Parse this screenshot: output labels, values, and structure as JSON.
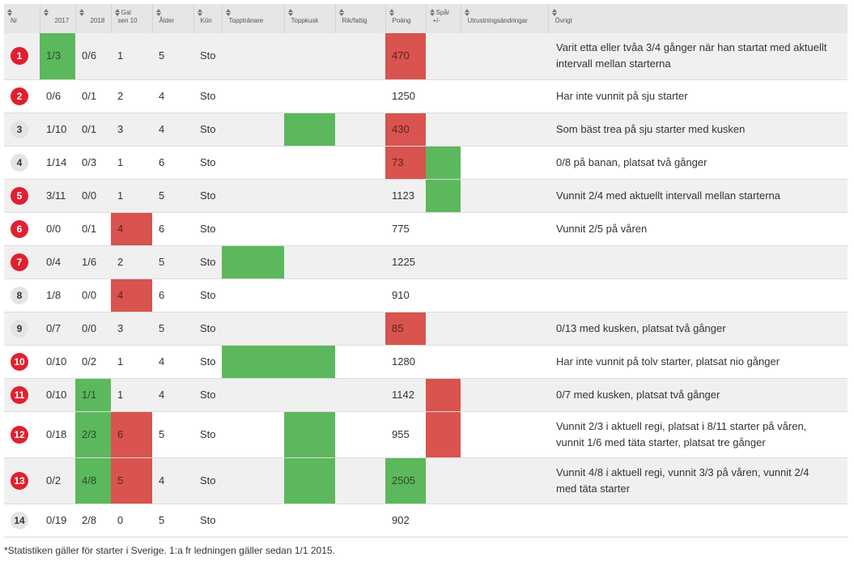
{
  "headers": {
    "nr": "Nr",
    "y2017": "2017",
    "y2018": "2018",
    "gal_line1": "Gal",
    "gal_line2": "sen 10",
    "alder": "Ålder",
    "kon": "Kön",
    "topptranare": "Topptränare",
    "toppkusk": "Toppkusk",
    "rikfattig": "Rik/fattig",
    "poang": "Poäng",
    "spar_line1": "Spår",
    "spar_line2": "+/-",
    "utrustning": "Utrustningsändringar",
    "ovrigt": "Övrigt"
  },
  "colors": {
    "green": "#5cb85c",
    "red": "#d9534f",
    "badge_red": "#e0202f",
    "badge_grey": "#e4e4e4",
    "header_bg": "#e6e6e6",
    "row_alt": "#f0f0f0"
  },
  "rows": [
    {
      "nr": "1",
      "badge": "red",
      "y2017": "1/3",
      "y2018": "0/6",
      "gal": "1",
      "alder": "5",
      "kon": "Sto",
      "poang": "470",
      "note": "Varit etta eller tvåa 3/4 gånger när han startat med aktuellt intervall mellan starterna",
      "hl": {
        "y2017": "green",
        "poang": "red"
      }
    },
    {
      "nr": "2",
      "badge": "red",
      "y2017": "0/6",
      "y2018": "0/1",
      "gal": "2",
      "alder": "4",
      "kon": "Sto",
      "poang": "1250",
      "note": "Har inte vunnit på sju starter",
      "hl": {}
    },
    {
      "nr": "3",
      "badge": "grey",
      "y2017": "1/10",
      "y2018": "0/1",
      "gal": "3",
      "alder": "4",
      "kon": "Sto",
      "poang": "430",
      "note": "Som bäst trea på sju starter med kusken",
      "hl": {
        "toppkusk": "green",
        "poang": "red"
      }
    },
    {
      "nr": "4",
      "badge": "grey",
      "y2017": "1/14",
      "y2018": "0/3",
      "gal": "1",
      "alder": "6",
      "kon": "Sto",
      "poang": "73",
      "note": "0/8 på banan, platsat två gånger",
      "hl": {
        "poang": "red",
        "spar": "green"
      }
    },
    {
      "nr": "5",
      "badge": "red",
      "y2017": "3/11",
      "y2018": "0/0",
      "gal": "1",
      "alder": "5",
      "kon": "Sto",
      "poang": "1123",
      "note": "Vunnit 2/4 med aktuellt intervall mellan starterna",
      "hl": {
        "spar": "green"
      }
    },
    {
      "nr": "6",
      "badge": "red",
      "y2017": "0/0",
      "y2018": "0/1",
      "gal": "4",
      "alder": "6",
      "kon": "Sto",
      "poang": "775",
      "note": "Vunnit 2/5 på våren",
      "hl": {
        "gal": "red"
      }
    },
    {
      "nr": "7",
      "badge": "red",
      "y2017": "0/4",
      "y2018": "1/6",
      "gal": "2",
      "alder": "5",
      "kon": "Sto",
      "poang": "1225",
      "note": "",
      "hl": {
        "topptranare": "green"
      }
    },
    {
      "nr": "8",
      "badge": "grey",
      "y2017": "1/8",
      "y2018": "0/0",
      "gal": "4",
      "alder": "6",
      "kon": "Sto",
      "poang": "910",
      "note": "",
      "hl": {
        "gal": "red"
      }
    },
    {
      "nr": "9",
      "badge": "grey",
      "y2017": "0/7",
      "y2018": "0/0",
      "gal": "3",
      "alder": "5",
      "kon": "Sto",
      "poang": "85",
      "note": "0/13 med kusken, platsat två gånger",
      "hl": {
        "poang": "red"
      }
    },
    {
      "nr": "10",
      "badge": "red",
      "y2017": "0/10",
      "y2018": "0/2",
      "gal": "1",
      "alder": "4",
      "kon": "Sto",
      "poang": "1280",
      "note": "Har inte vunnit på tolv starter, platsat nio gånger",
      "hl": {
        "topptranare": "green",
        "toppkusk": "green"
      }
    },
    {
      "nr": "11",
      "badge": "red",
      "y2017": "0/10",
      "y2018": "1/1",
      "gal": "1",
      "alder": "4",
      "kon": "Sto",
      "poang": "1142",
      "note": "0/7 med kusken, platsat två gånger",
      "hl": {
        "y2018": "green",
        "spar": "red"
      }
    },
    {
      "nr": "12",
      "badge": "red",
      "y2017": "0/18",
      "y2018": "2/3",
      "gal": "6",
      "alder": "5",
      "kon": "Sto",
      "poang": "955",
      "note": "Vunnit 2/3 i aktuell regi, platsat i 8/11 starter på våren, vunnit 1/6 med täta starter, platsat tre gånger",
      "hl": {
        "y2018": "green",
        "gal": "red",
        "toppkusk": "green",
        "spar": "red"
      }
    },
    {
      "nr": "13",
      "badge": "red",
      "y2017": "0/2",
      "y2018": "4/8",
      "gal": "5",
      "alder": "4",
      "kon": "Sto",
      "poang": "2505",
      "note": "Vunnit 4/8 i aktuell regi, vunnit 3/3 på våren, vunnit 2/4 med täta starter",
      "hl": {
        "y2018": "green",
        "gal": "red",
        "toppkusk": "green",
        "poang": "green"
      }
    },
    {
      "nr": "14",
      "badge": "grey",
      "y2017": "0/19",
      "y2018": "2/8",
      "gal": "0",
      "alder": "5",
      "kon": "Sto",
      "poang": "902",
      "note": "",
      "hl": {}
    }
  ],
  "footer": "*Statistiken gäller för starter i Sverige. 1:a fr ledningen gäller sedan 1/1 2015."
}
